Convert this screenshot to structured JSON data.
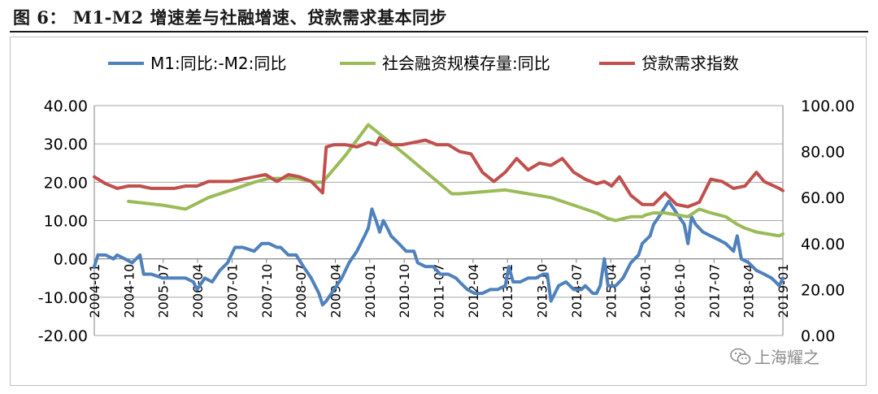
{
  "figure": {
    "title": "图 6： M1-M2 增速差与社融增速、贷款需求基本同步",
    "watermark": "上海耀之",
    "watermark_icon": "wechat-icon"
  },
  "chart_data": {
    "type": "line",
    "left_axis": {
      "ticks": [
        "40.00",
        "30.00",
        "20.00",
        "10.00",
        "0.00",
        "-10.00",
        "-20.00"
      ],
      "ylim": [
        -20,
        40
      ]
    },
    "right_axis": {
      "ticks": [
        "100.00",
        "80.00",
        "60.00",
        "40.00",
        "20.00",
        "0.00"
      ],
      "ylim": [
        0,
        100
      ]
    },
    "x_ticks": [
      "2004-01",
      "2004-10",
      "2005-07",
      "2006-04",
      "2007-01",
      "2007-10",
      "2008-07",
      "2009-04",
      "2010-01",
      "2010-10",
      "2011-07",
      "2012-04",
      "2013-01",
      "2013-10",
      "2014-07",
      "2015-04",
      "2016-01",
      "2016-10",
      "2017-07",
      "2018-04",
      "2019-01"
    ],
    "x_range": [
      2004.0,
      2019.08
    ],
    "series": [
      {
        "name": "M1:同比:-M2:同比",
        "axis": "left",
        "color": "#4F81BD",
        "points": [
          [
            2004.0,
            -2
          ],
          [
            2004.08,
            1
          ],
          [
            2004.25,
            1
          ],
          [
            2004.42,
            0
          ],
          [
            2004.5,
            1
          ],
          [
            2004.67,
            0
          ],
          [
            2004.83,
            -1
          ],
          [
            2005.0,
            1
          ],
          [
            2005.08,
            -4
          ],
          [
            2005.25,
            -4
          ],
          [
            2005.5,
            -5
          ],
          [
            2005.75,
            -5
          ],
          [
            2006.0,
            -5
          ],
          [
            2006.17,
            -6
          ],
          [
            2006.25,
            -8
          ],
          [
            2006.42,
            -5
          ],
          [
            2006.58,
            -6
          ],
          [
            2006.75,
            -3
          ],
          [
            2006.92,
            -1
          ],
          [
            2007.08,
            3
          ],
          [
            2007.25,
            3
          ],
          [
            2007.5,
            2
          ],
          [
            2007.67,
            4
          ],
          [
            2007.83,
            4
          ],
          [
            2008.0,
            3
          ],
          [
            2008.08,
            3
          ],
          [
            2008.25,
            1
          ],
          [
            2008.42,
            1
          ],
          [
            2008.58,
            -2
          ],
          [
            2008.75,
            -5
          ],
          [
            2008.92,
            -9
          ],
          [
            2009.0,
            -12
          ],
          [
            2009.08,
            -11
          ],
          [
            2009.25,
            -8
          ],
          [
            2009.42,
            -5
          ],
          [
            2009.58,
            -1
          ],
          [
            2009.75,
            2
          ],
          [
            2009.92,
            6
          ],
          [
            2010.0,
            8
          ],
          [
            2010.08,
            13
          ],
          [
            2010.17,
            10
          ],
          [
            2010.25,
            7
          ],
          [
            2010.33,
            10
          ],
          [
            2010.42,
            8
          ],
          [
            2010.5,
            6
          ],
          [
            2010.67,
            4
          ],
          [
            2010.83,
            2
          ],
          [
            2011.0,
            2
          ],
          [
            2011.08,
            -1
          ],
          [
            2011.25,
            -2
          ],
          [
            2011.42,
            -2
          ],
          [
            2011.58,
            -4
          ],
          [
            2011.75,
            -4
          ],
          [
            2011.92,
            -5
          ],
          [
            2012.0,
            -6
          ],
          [
            2012.17,
            -8
          ],
          [
            2012.33,
            -9
          ],
          [
            2012.5,
            -9
          ],
          [
            2012.67,
            -8
          ],
          [
            2012.83,
            -8
          ],
          [
            2013.0,
            -7
          ],
          [
            2013.08,
            -2
          ],
          [
            2013.17,
            -6
          ],
          [
            2013.33,
            -6
          ],
          [
            2013.5,
            -5
          ],
          [
            2013.67,
            -5
          ],
          [
            2013.83,
            -4
          ],
          [
            2013.92,
            -4
          ],
          [
            2014.0,
            -11
          ],
          [
            2014.17,
            -7
          ],
          [
            2014.33,
            -6
          ],
          [
            2014.5,
            -8
          ],
          [
            2014.67,
            -8
          ],
          [
            2014.75,
            -7
          ],
          [
            2014.92,
            -9
          ],
          [
            2015.0,
            -9
          ],
          [
            2015.08,
            -7
          ],
          [
            2015.17,
            0
          ],
          [
            2015.25,
            -7
          ],
          [
            2015.42,
            -7
          ],
          [
            2015.58,
            -5
          ],
          [
            2015.75,
            -1
          ],
          [
            2015.92,
            1
          ],
          [
            2016.0,
            4
          ],
          [
            2016.17,
            6
          ],
          [
            2016.25,
            9
          ],
          [
            2016.42,
            12
          ],
          [
            2016.58,
            15
          ],
          [
            2016.75,
            12
          ],
          [
            2016.92,
            9
          ],
          [
            2017.0,
            4
          ],
          [
            2017.08,
            11
          ],
          [
            2017.17,
            9
          ],
          [
            2017.33,
            7
          ],
          [
            2017.5,
            6
          ],
          [
            2017.67,
            5
          ],
          [
            2017.83,
            4
          ],
          [
            2018.0,
            2
          ],
          [
            2018.08,
            6
          ],
          [
            2018.17,
            0
          ],
          [
            2018.33,
            -1
          ],
          [
            2018.5,
            -3
          ],
          [
            2018.67,
            -4
          ],
          [
            2018.83,
            -5
          ],
          [
            2018.92,
            -6
          ],
          [
            2019.0,
            -7
          ],
          [
            2019.08,
            -5
          ]
        ]
      },
      {
        "name": "社会融资规模存量:同比",
        "axis": "left",
        "color": "#9BBB59",
        "points": [
          [
            2004.75,
            15
          ],
          [
            2005.5,
            14
          ],
          [
            2006.0,
            13
          ],
          [
            2006.5,
            16
          ],
          [
            2007.0,
            18
          ],
          [
            2007.5,
            20
          ],
          [
            2007.83,
            21
          ],
          [
            2008.0,
            21
          ],
          [
            2008.42,
            21
          ],
          [
            2008.83,
            20
          ],
          [
            2009.0,
            20
          ],
          [
            2009.5,
            27
          ],
          [
            2010.0,
            35
          ],
          [
            2010.42,
            31
          ],
          [
            2010.83,
            27
          ],
          [
            2011.33,
            22
          ],
          [
            2011.83,
            17
          ],
          [
            2012.0,
            17
          ],
          [
            2012.5,
            17.5
          ],
          [
            2013.0,
            18
          ],
          [
            2013.5,
            17
          ],
          [
            2014.0,
            16
          ],
          [
            2014.5,
            14
          ],
          [
            2015.0,
            12
          ],
          [
            2015.25,
            10.5
          ],
          [
            2015.42,
            10
          ],
          [
            2015.58,
            10.5
          ],
          [
            2015.75,
            11
          ],
          [
            2016.0,
            11
          ],
          [
            2016.08,
            11.5
          ],
          [
            2016.25,
            12
          ],
          [
            2016.5,
            12
          ],
          [
            2016.75,
            11.5
          ],
          [
            2017.0,
            11
          ],
          [
            2017.25,
            13
          ],
          [
            2017.5,
            12
          ],
          [
            2017.83,
            11
          ],
          [
            2018.08,
            9
          ],
          [
            2018.25,
            8
          ],
          [
            2018.5,
            7
          ],
          [
            2018.75,
            6.5
          ],
          [
            2019.0,
            6
          ],
          [
            2019.08,
            6.5
          ]
        ]
      },
      {
        "name": "贷款需求指数",
        "axis": "right",
        "color": "#C0504D",
        "points": [
          [
            2004.0,
            69
          ],
          [
            2004.25,
            66
          ],
          [
            2004.5,
            64
          ],
          [
            2004.75,
            65
          ],
          [
            2005.0,
            65
          ],
          [
            2005.25,
            64
          ],
          [
            2005.5,
            64
          ],
          [
            2005.75,
            64
          ],
          [
            2006.0,
            65
          ],
          [
            2006.25,
            65
          ],
          [
            2006.5,
            67
          ],
          [
            2006.75,
            67
          ],
          [
            2007.0,
            67
          ],
          [
            2007.25,
            68
          ],
          [
            2007.5,
            69
          ],
          [
            2007.75,
            70
          ],
          [
            2008.0,
            67
          ],
          [
            2008.25,
            70
          ],
          [
            2008.5,
            69
          ],
          [
            2008.75,
            67
          ],
          [
            2009.0,
            62
          ],
          [
            2009.08,
            82
          ],
          [
            2009.25,
            83
          ],
          [
            2009.5,
            83
          ],
          [
            2009.75,
            82
          ],
          [
            2010.0,
            84
          ],
          [
            2010.17,
            83
          ],
          [
            2010.25,
            86
          ],
          [
            2010.5,
            83
          ],
          [
            2010.75,
            83
          ],
          [
            2011.0,
            84
          ],
          [
            2011.25,
            85
          ],
          [
            2011.5,
            83
          ],
          [
            2011.75,
            83
          ],
          [
            2012.0,
            80
          ],
          [
            2012.25,
            79
          ],
          [
            2012.5,
            71
          ],
          [
            2012.75,
            67
          ],
          [
            2013.0,
            71
          ],
          [
            2013.25,
            77
          ],
          [
            2013.5,
            72
          ],
          [
            2013.75,
            75
          ],
          [
            2014.0,
            74
          ],
          [
            2014.25,
            77
          ],
          [
            2014.5,
            71
          ],
          [
            2014.75,
            68
          ],
          [
            2015.0,
            66
          ],
          [
            2015.17,
            67
          ],
          [
            2015.33,
            65
          ],
          [
            2015.5,
            69
          ],
          [
            2015.75,
            61
          ],
          [
            2016.0,
            57
          ],
          [
            2016.25,
            57
          ],
          [
            2016.5,
            62
          ],
          [
            2016.75,
            57
          ],
          [
            2017.0,
            56
          ],
          [
            2017.25,
            58
          ],
          [
            2017.5,
            68
          ],
          [
            2017.75,
            67
          ],
          [
            2018.0,
            64
          ],
          [
            2018.25,
            65
          ],
          [
            2018.5,
            71
          ],
          [
            2018.67,
            67
          ],
          [
            2019.0,
            64
          ],
          [
            2019.08,
            63
          ]
        ]
      }
    ]
  }
}
